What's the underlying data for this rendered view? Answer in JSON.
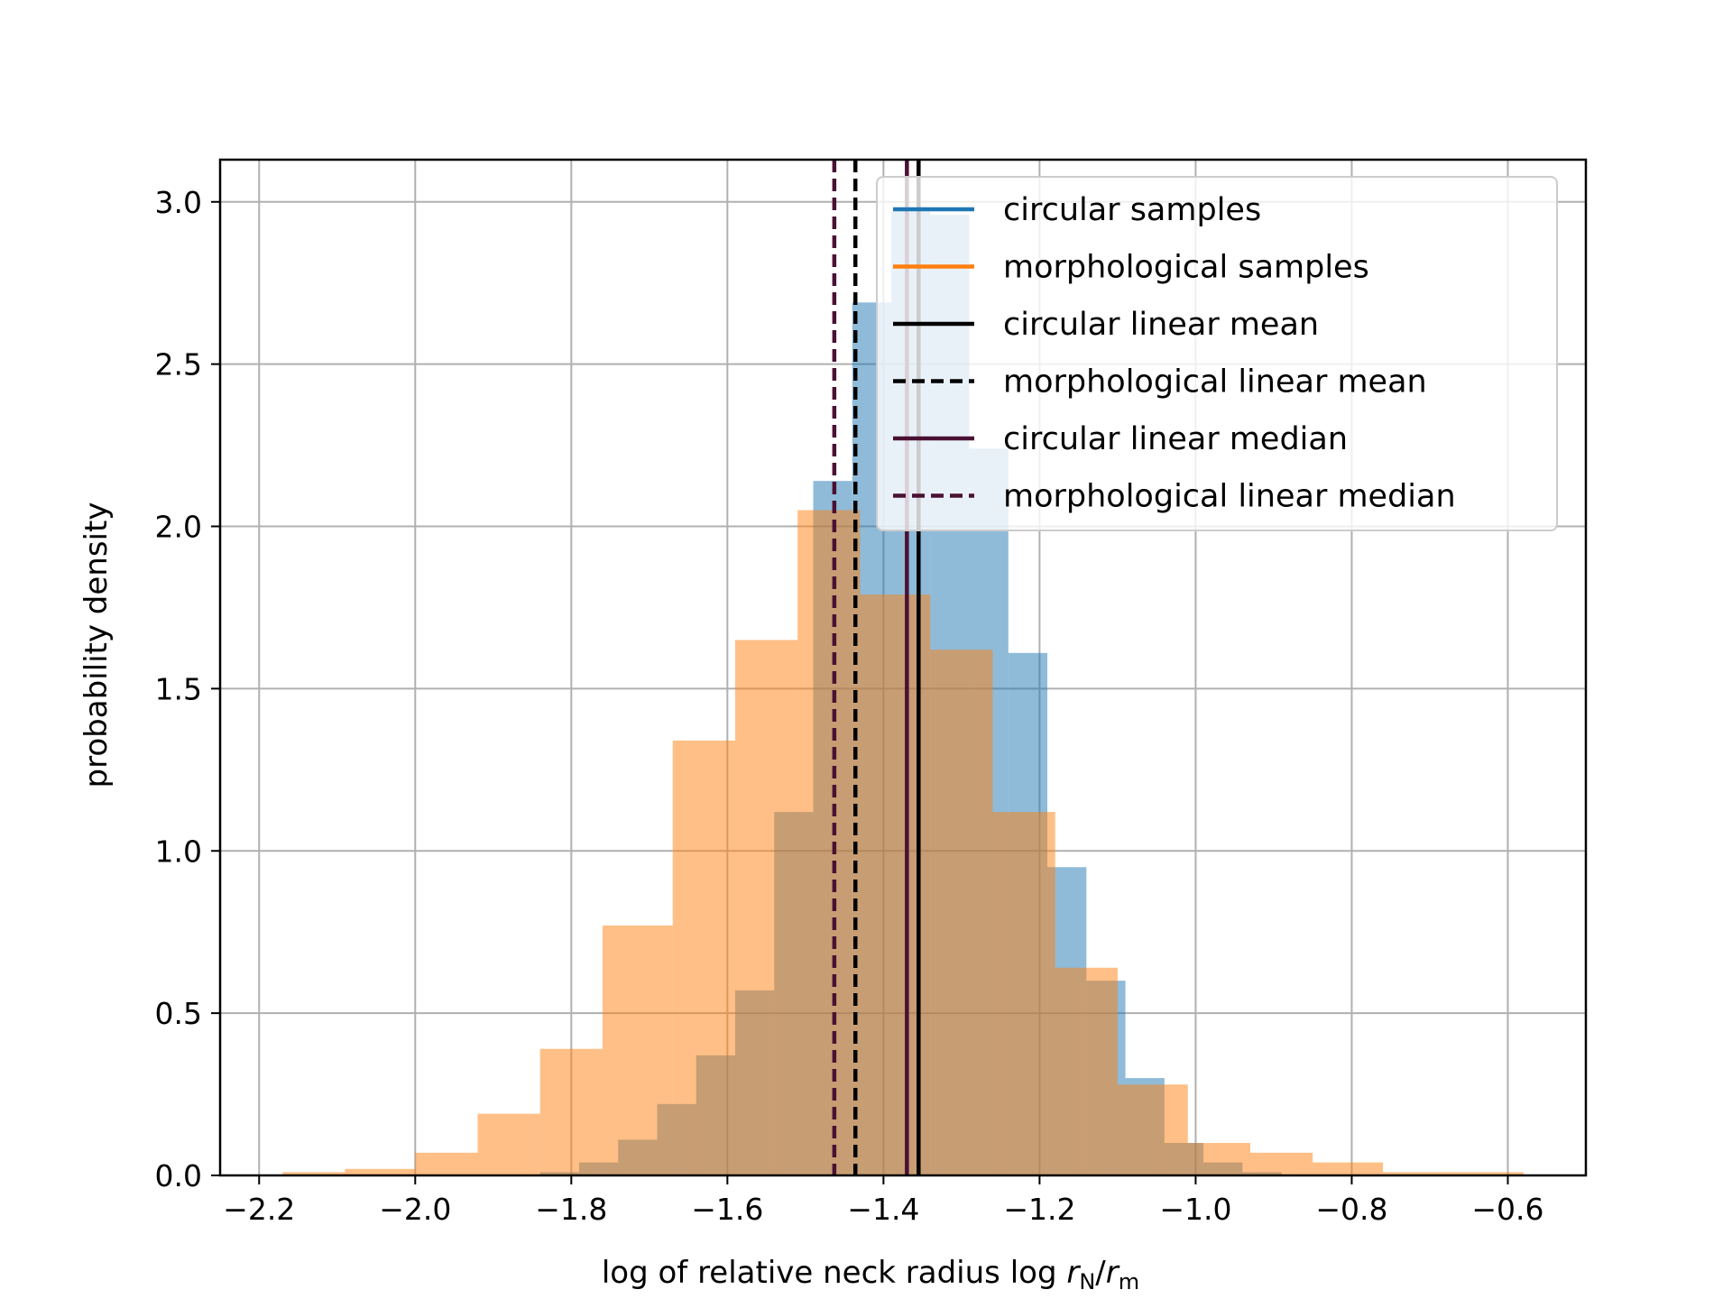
{
  "chart_data": {
    "type": "histogram",
    "xlabel": "log of relative neck radius log ",
    "xlabel_math": {
      "r": "r",
      "sub1": "N",
      "slash": "/",
      "sub2": "m"
    },
    "ylabel": "probability density",
    "xlim": [
      -2.25,
      -0.5
    ],
    "ylim": [
      0,
      3.13
    ],
    "grid": true,
    "x_ticks": [
      {
        "value": -2.2,
        "label": "−2.2"
      },
      {
        "value": -2.0,
        "label": "−2.0"
      },
      {
        "value": -1.8,
        "label": "−1.8"
      },
      {
        "value": -1.6,
        "label": "−1.6"
      },
      {
        "value": -1.4,
        "label": "−1.4"
      },
      {
        "value": -1.2,
        "label": "−1.2"
      },
      {
        "value": -1.0,
        "label": "−1.0"
      },
      {
        "value": -0.8,
        "label": "−0.8"
      },
      {
        "value": -0.6,
        "label": "−0.6"
      }
    ],
    "y_ticks": [
      {
        "value": 0.0,
        "label": "0.0"
      },
      {
        "value": 0.5,
        "label": "0.5"
      },
      {
        "value": 1.0,
        "label": "1.0"
      },
      {
        "value": 1.5,
        "label": "1.5"
      },
      {
        "value": 2.0,
        "label": "2.0"
      },
      {
        "value": 2.5,
        "label": "2.5"
      },
      {
        "value": 3.0,
        "label": "3.0"
      }
    ],
    "series": [
      {
        "name": "circular samples",
        "color": "#1f77b4",
        "fill_color": "#8fbad9",
        "bin_edges": [
          -1.84,
          -1.79,
          -1.74,
          -1.69,
          -1.64,
          -1.59,
          -1.54,
          -1.49,
          -1.44,
          -1.39,
          -1.34,
          -1.29,
          -1.24,
          -1.19,
          -1.14,
          -1.09,
          -1.04,
          -0.99,
          -0.94,
          -0.89
        ],
        "densities": [
          0.01,
          0.04,
          0.11,
          0.22,
          0.37,
          0.57,
          1.12,
          2.14,
          2.69,
          2.97,
          2.96,
          2.24,
          1.61,
          0.95,
          0.6,
          0.3,
          0.1,
          0.04,
          0.01
        ]
      },
      {
        "name": "morphological samples",
        "color": "#ff7f0e",
        "fill_color": "#fdbf87",
        "bin_edges": [
          -2.17,
          -2.09,
          -2.0,
          -1.92,
          -1.84,
          -1.76,
          -1.67,
          -1.59,
          -1.51,
          -1.43,
          -1.34,
          -1.26,
          -1.18,
          -1.1,
          -1.01,
          -0.93,
          -0.85,
          -0.76,
          -0.68,
          -0.58
        ],
        "densities": [
          0.01,
          0.02,
          0.07,
          0.19,
          0.39,
          0.77,
          1.34,
          1.65,
          2.05,
          1.79,
          1.62,
          1.12,
          0.64,
          0.28,
          0.1,
          0.07,
          0.04,
          0.01,
          0.01
        ]
      }
    ],
    "lines": [
      {
        "name": "circular linear mean",
        "x": -1.355,
        "color": "#000000",
        "style": "solid"
      },
      {
        "name": "morphological linear mean",
        "x": -1.436,
        "color": "#000000",
        "style": "dashed"
      },
      {
        "name": "circular linear median",
        "x": -1.37,
        "color": "#4a1133",
        "style": "solid"
      },
      {
        "name": "morphological linear median",
        "x": -1.463,
        "color": "#4a1133",
        "style": "dashed"
      }
    ],
    "legend": {
      "placement": "top-right",
      "entries": [
        {
          "label": "circular samples",
          "color": "#1f77b4",
          "style": "solid"
        },
        {
          "label": "morphological samples",
          "color": "#ff7f0e",
          "style": "solid"
        },
        {
          "label": "circular linear mean",
          "color": "#000000",
          "style": "solid"
        },
        {
          "label": "morphological linear mean",
          "color": "#000000",
          "style": "dashed"
        },
        {
          "label": "circular linear median",
          "color": "#4a1133",
          "style": "solid"
        },
        {
          "label": "morphological linear median",
          "color": "#4a1133",
          "style": "dashed"
        }
      ]
    }
  }
}
